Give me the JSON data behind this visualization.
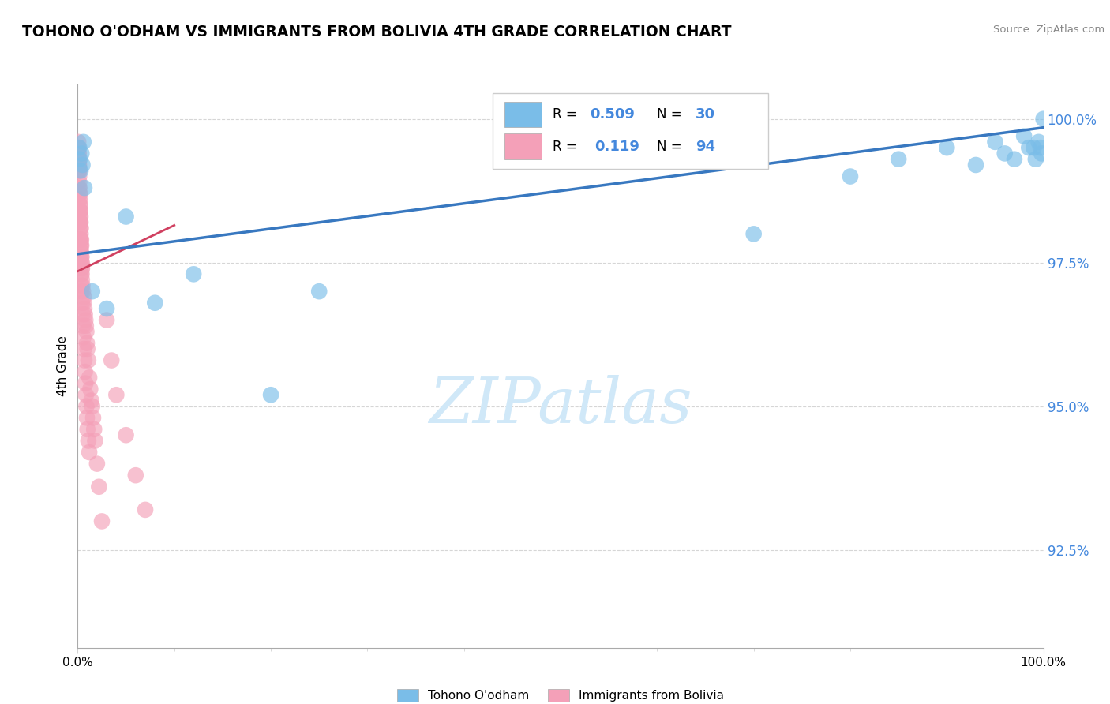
{
  "title": "TOHONO O'ODHAM VS IMMIGRANTS FROM BOLIVIA 4TH GRADE CORRELATION CHART",
  "source": "Source: ZipAtlas.com",
  "ylabel": "4th Grade",
  "xmin": 0.0,
  "xmax": 100.0,
  "ymin": 90.8,
  "ymax": 100.6,
  "blue_series_color": "#7abde8",
  "pink_series_color": "#f4a0b8",
  "blue_trendline_color": "#3878c0",
  "pink_trendline_color": "#d04060",
  "blue_R": 0.509,
  "blue_N": 30,
  "pink_R": 0.119,
  "pink_N": 94,
  "watermark": "ZIPatlas",
  "watermark_color": "#d0e8f8",
  "grid_color": "#cccccc",
  "background_color": "#ffffff",
  "blue_x": [
    0.15,
    0.2,
    0.3,
    0.4,
    0.5,
    0.6,
    0.7,
    1.5,
    3.0,
    5.0,
    8.0,
    12.0,
    20.0,
    25.0,
    70.0,
    80.0,
    85.0,
    90.0,
    93.0,
    95.0,
    96.0,
    97.0,
    98.0,
    98.5,
    99.0,
    99.2,
    99.5,
    99.7,
    99.8,
    100.0
  ],
  "blue_y": [
    99.5,
    99.3,
    99.1,
    99.4,
    99.2,
    99.6,
    98.8,
    97.0,
    96.7,
    98.3,
    96.8,
    97.3,
    95.2,
    97.0,
    98.0,
    99.0,
    99.3,
    99.5,
    99.2,
    99.6,
    99.4,
    99.3,
    99.7,
    99.5,
    99.5,
    99.3,
    99.6,
    99.5,
    99.4,
    100.0
  ],
  "pink_x": [
    0.05,
    0.06,
    0.07,
    0.08,
    0.09,
    0.1,
    0.11,
    0.12,
    0.13,
    0.14,
    0.15,
    0.16,
    0.17,
    0.18,
    0.19,
    0.2,
    0.21,
    0.22,
    0.23,
    0.24,
    0.25,
    0.26,
    0.27,
    0.28,
    0.29,
    0.3,
    0.31,
    0.32,
    0.33,
    0.34,
    0.35,
    0.36,
    0.37,
    0.38,
    0.39,
    0.4,
    0.41,
    0.42,
    0.43,
    0.44,
    0.45,
    0.5,
    0.55,
    0.6,
    0.65,
    0.7,
    0.75,
    0.8,
    0.85,
    0.9,
    0.95,
    1.0,
    1.1,
    1.2,
    1.3,
    1.4,
    1.5,
    1.6,
    1.7,
    1.8,
    2.0,
    2.2,
    2.5,
    3.0,
    3.5,
    4.0,
    5.0,
    6.0,
    7.0,
    0.08,
    0.12,
    0.15,
    0.18,
    0.22,
    0.25,
    0.28,
    0.32,
    0.35,
    0.38,
    0.4,
    0.45,
    0.5,
    0.55,
    0.6,
    0.65,
    0.7,
    0.75,
    0.8,
    0.85,
    0.9,
    0.95,
    1.0,
    1.1,
    1.2
  ],
  "pink_y": [
    99.5,
    99.6,
    99.4,
    99.3,
    99.5,
    99.4,
    99.2,
    99.1,
    99.3,
    99.2,
    99.0,
    98.9,
    99.1,
    98.8,
    98.7,
    98.6,
    98.5,
    98.7,
    98.4,
    98.3,
    98.5,
    98.4,
    98.2,
    98.1,
    98.3,
    98.2,
    98.0,
    97.9,
    98.1,
    97.8,
    97.7,
    97.9,
    97.6,
    97.8,
    97.5,
    97.6,
    97.4,
    97.3,
    97.5,
    97.2,
    97.4,
    97.1,
    97.0,
    96.8,
    96.9,
    96.7,
    96.6,
    96.5,
    96.4,
    96.3,
    96.1,
    96.0,
    95.8,
    95.5,
    95.3,
    95.1,
    95.0,
    94.8,
    94.6,
    94.4,
    94.0,
    93.6,
    93.0,
    96.5,
    95.8,
    95.2,
    94.5,
    93.8,
    93.2,
    99.2,
    98.8,
    98.6,
    98.4,
    98.2,
    97.9,
    97.7,
    97.5,
    97.3,
    97.1,
    97.0,
    96.8,
    96.6,
    96.4,
    96.2,
    96.0,
    95.8,
    95.6,
    95.4,
    95.2,
    95.0,
    94.8,
    94.6,
    94.4,
    94.2
  ],
  "blue_trend_x0": 0.0,
  "blue_trend_y0": 97.65,
  "blue_trend_x1": 100.0,
  "blue_trend_y1": 99.85,
  "pink_trend_x0": 0.0,
  "pink_trend_y0": 97.35,
  "pink_trend_x1": 10.0,
  "pink_trend_y1": 98.15,
  "ytick_vals": [
    92.5,
    95.0,
    97.5,
    100.0
  ],
  "legend_blue_label": "R = 0.509   N = 30",
  "legend_pink_label": "R =  0.119   N = 94"
}
